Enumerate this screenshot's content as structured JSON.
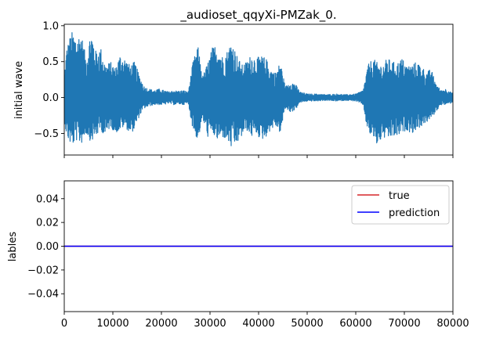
{
  "chart_data": [
    {
      "type": "line",
      "title": "_audioset_qqyXi-PMZak_0.",
      "xlabel": "",
      "ylabel": "initial wave",
      "xlim": [
        0,
        80000
      ],
      "ylim": [
        -0.8,
        1.02
      ],
      "yticks": [
        -0.5,
        0.0,
        0.5,
        1.0
      ],
      "ytick_labels": [
        "−0.5",
        "0.0",
        "0.5",
        "1.0"
      ],
      "xticks": [
        0,
        10000,
        20000,
        30000,
        40000,
        50000,
        60000,
        70000,
        80000
      ],
      "show_xtick_labels": false,
      "grid": false,
      "series": [
        {
          "color": "#1f77b4",
          "envelope": {
            "x": [
              0,
              500,
              1500,
              2500,
              3500,
              4500,
              5500,
              6500,
              7500,
              8500,
              9500,
              10500,
              11500,
              12500,
              13500,
              14500,
              15500,
              16500,
              17500,
              18500,
              19500,
              20500,
              21500,
              22500,
              23500,
              24500,
              25500,
              26500,
              27500,
              28500,
              29500,
              30500,
              31500,
              32500,
              33500,
              34500,
              35500,
              36500,
              37500,
              38500,
              39500,
              40500,
              41500,
              42500,
              43500,
              44500,
              45500,
              46500,
              47500,
              48500,
              50000,
              52000,
              54000,
              56000,
              58000,
              60000,
              61500,
              62500,
              63500,
              64500,
              65500,
              66500,
              67500,
              68500,
              69500,
              70500,
              71500,
              72500,
              73500,
              74500,
              75500,
              76500,
              77500,
              78500,
              79500,
              80000
            ],
            "upper": [
              0.3,
              0.7,
              0.92,
              0.85,
              0.9,
              0.55,
              0.95,
              0.65,
              0.7,
              0.45,
              0.5,
              0.42,
              0.6,
              0.55,
              0.45,
              0.5,
              0.3,
              0.15,
              0.12,
              0.1,
              0.12,
              0.1,
              0.08,
              0.1,
              0.09,
              0.1,
              0.08,
              0.5,
              0.72,
              0.3,
              0.48,
              0.7,
              0.75,
              0.58,
              0.65,
              0.8,
              0.6,
              0.45,
              0.5,
              0.6,
              0.55,
              0.58,
              0.55,
              0.4,
              0.35,
              0.5,
              0.15,
              0.22,
              0.2,
              0.08,
              0.05,
              0.05,
              0.04,
              0.05,
              0.04,
              0.05,
              0.1,
              0.45,
              0.55,
              0.48,
              0.45,
              0.55,
              0.5,
              0.48,
              0.55,
              0.45,
              0.45,
              0.5,
              0.45,
              0.35,
              0.4,
              0.2,
              0.1,
              0.12,
              0.08,
              0.06
            ],
            "lower": [
              -0.3,
              -0.55,
              -0.68,
              -0.6,
              -0.65,
              -0.5,
              -0.62,
              -0.55,
              -0.45,
              -0.55,
              -0.4,
              -0.5,
              -0.45,
              -0.4,
              -0.5,
              -0.45,
              -0.25,
              -0.15,
              -0.12,
              -0.1,
              -0.1,
              -0.1,
              -0.08,
              -0.1,
              -0.09,
              -0.1,
              -0.08,
              -0.45,
              -0.6,
              -0.3,
              -0.55,
              -0.5,
              -0.6,
              -0.55,
              -0.6,
              -0.72,
              -0.65,
              -0.55,
              -0.45,
              -0.55,
              -0.5,
              -0.6,
              -0.55,
              -0.45,
              -0.4,
              -0.5,
              -0.15,
              -0.2,
              -0.18,
              -0.07,
              -0.05,
              -0.05,
              -0.04,
              -0.05,
              -0.04,
              -0.05,
              -0.1,
              -0.5,
              -0.55,
              -0.68,
              -0.55,
              -0.6,
              -0.55,
              -0.55,
              -0.5,
              -0.45,
              -0.5,
              -0.45,
              -0.4,
              -0.35,
              -0.3,
              -0.2,
              -0.1,
              -0.1,
              -0.08,
              -0.06
            ]
          }
        }
      ]
    },
    {
      "type": "line",
      "title": "",
      "xlabel": "",
      "ylabel": "lables",
      "xlim": [
        0,
        80000
      ],
      "ylim": [
        -0.055,
        0.055
      ],
      "yticks": [
        -0.04,
        -0.02,
        0.0,
        0.02,
        0.04
      ],
      "ytick_labels": [
        "−0.04",
        "−0.02",
        "0.00",
        "0.02",
        "0.04"
      ],
      "xticks": [
        0,
        10000,
        20000,
        30000,
        40000,
        50000,
        60000,
        70000,
        80000
      ],
      "xtick_labels": [
        "0",
        "10000",
        "20000",
        "30000",
        "40000",
        "50000",
        "60000",
        "70000",
        "80000"
      ],
      "grid": false,
      "legend_position": "top-right",
      "series": [
        {
          "name": "true",
          "color": "#d62728",
          "x": [
            0,
            80000
          ],
          "values": [
            0,
            0
          ]
        },
        {
          "name": "prediction",
          "color": "#0000ff",
          "x": [
            0,
            80000
          ],
          "values": [
            0,
            0
          ]
        }
      ]
    }
  ]
}
